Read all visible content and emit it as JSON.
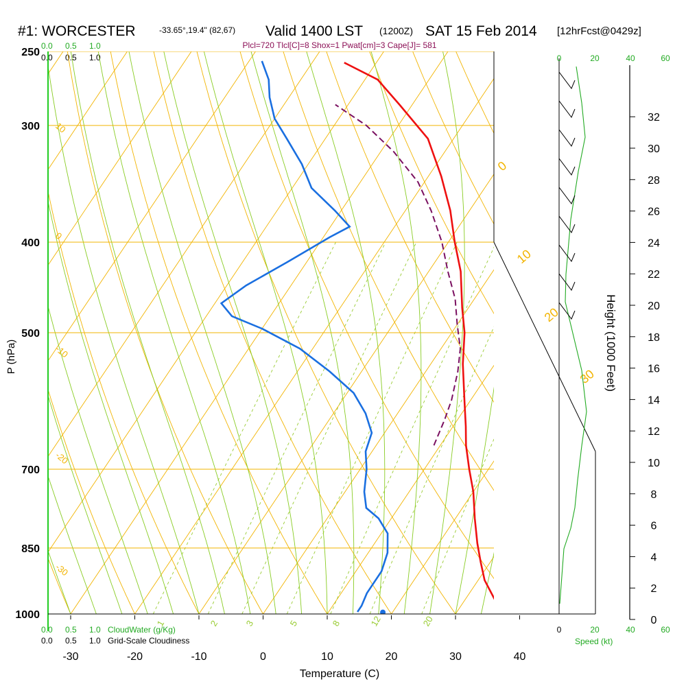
{
  "header": {
    "station": "#1: WORCESTER",
    "coords": "-33.65°,19.4\" (82,67)",
    "valid": "Valid 1400 LST",
    "utc": "(1200Z)",
    "date": "SAT 15 Feb 2014",
    "fcst": "[12hrFcst@0429z]",
    "indices": "Plcl=720 Tlcl[C]=8 Shox=1 Pwat[cm]=3 Cape[J]= 581"
  },
  "cloud_scale": {
    "top_green": [
      "0.0",
      "0.5",
      "1.0"
    ],
    "top_black": [
      "0.0",
      "0.5",
      "1.0"
    ],
    "bottom_green": [
      "0.0",
      "0.5",
      "1.0"
    ],
    "bottom_green_label": "CloudWater (g/Kg)",
    "bottom_black": [
      "0.0",
      "0.5",
      "1.0"
    ],
    "bottom_black_label": "Grid-Scale Cloudiness"
  },
  "speed_panel": {
    "top_ticks": [
      "0",
      "20",
      "40",
      "60"
    ],
    "bottom_ticks": [
      "0",
      "20",
      "40",
      "60"
    ],
    "label": "Speed (kt)"
  },
  "chart_data": {
    "type": "line",
    "chart_kind": "Skew-T log-P sounding",
    "xlabel": "Temperature (C)",
    "ylabel": "P (hPa)",
    "y2label": "Height (1000 Feet)",
    "x_ticks": [
      "-30",
      "-20",
      "-10",
      "0",
      "10",
      "20",
      "30",
      "40"
    ],
    "p_ticks": [
      "250",
      "300",
      "400",
      "500",
      "700",
      "850",
      "1000"
    ],
    "height_ticks": [
      "0",
      "2",
      "4",
      "6",
      "8",
      "10",
      "12",
      "14",
      "16",
      "18",
      "20",
      "22",
      "24",
      "26",
      "28",
      "30",
      "32"
    ],
    "dry_adiabat_labels": [
      "10",
      "0",
      "-10",
      "-20",
      "-30"
    ],
    "moist_adiabat_labels": [
      "0",
      "10",
      "20",
      "30"
    ],
    "mixing_ratio_labels": [
      "1",
      "2",
      "3",
      "5",
      "8",
      "12",
      "20"
    ],
    "colors": {
      "temperature": "#ee1111",
      "dewpoint": "#1a6fe0",
      "parcel": "#7a1060",
      "isobars": "#f2b400",
      "dry_adiabats": "#f2b400",
      "moist_adiabats": "#88cc22",
      "mixing_ratio": "#99cc33",
      "wind_speed": "#22aa22"
    },
    "series": [
      {
        "key": "temperature",
        "points": [
          [
            38,
            995
          ],
          [
            37,
            990
          ],
          [
            35,
            970
          ],
          [
            31,
            920
          ],
          [
            28.5,
            880
          ],
          [
            26,
            840
          ],
          [
            23,
            790
          ],
          [
            20,
            740
          ],
          [
            17,
            700
          ],
          [
            14,
            660
          ],
          [
            12,
            630
          ],
          [
            9,
            590
          ],
          [
            5,
            540
          ],
          [
            2,
            500
          ],
          [
            -1,
            470
          ],
          [
            -5,
            430
          ],
          [
            -9,
            400
          ],
          [
            -13,
            370
          ],
          [
            -18,
            340
          ],
          [
            -24,
            310
          ],
          [
            -32,
            285
          ],
          [
            -38,
            268
          ],
          [
            -45,
            257
          ]
        ]
      },
      {
        "key": "dewpoint",
        "points": [
          [
            14.5,
            995
          ],
          [
            14.5,
            980
          ],
          [
            14,
            950
          ],
          [
            14,
            900
          ],
          [
            13,
            860
          ],
          [
            11,
            820
          ],
          [
            8,
            790
          ],
          [
            5,
            770
          ],
          [
            3,
            740
          ],
          [
            1,
            700
          ],
          [
            -1,
            670
          ],
          [
            -2,
            640
          ],
          [
            -5,
            610
          ],
          [
            -9,
            580
          ],
          [
            -15,
            550
          ],
          [
            -22,
            520
          ],
          [
            -30,
            495
          ],
          [
            -36,
            480
          ],
          [
            -39,
            465
          ],
          [
            -37,
            445
          ],
          [
            -33,
            420
          ],
          [
            -29,
            395
          ],
          [
            -27,
            385
          ],
          [
            -31,
            370
          ],
          [
            -37,
            350
          ],
          [
            -41,
            330
          ],
          [
            -46,
            310
          ],
          [
            -50,
            295
          ],
          [
            -53,
            280
          ],
          [
            -55,
            268
          ],
          [
            -58,
            256
          ]
        ]
      },
      {
        "key": "parcel",
        "points": [
          [
            9,
            660
          ],
          [
            8,
            620
          ],
          [
            7,
            590
          ],
          [
            5,
            550
          ],
          [
            3,
            520
          ],
          [
            0,
            490
          ],
          [
            -3,
            460
          ],
          [
            -7,
            430
          ],
          [
            -11,
            400
          ],
          [
            -16,
            370
          ],
          [
            -21,
            345
          ],
          [
            -28,
            320
          ],
          [
            -35,
            300
          ],
          [
            -42,
            285
          ]
        ]
      }
    ],
    "surface_points": [
      {
        "key": "temperature",
        "T": 39,
        "p": 996
      },
      {
        "key": "dewpoint",
        "T": 18.5,
        "p": 996
      }
    ]
  }
}
